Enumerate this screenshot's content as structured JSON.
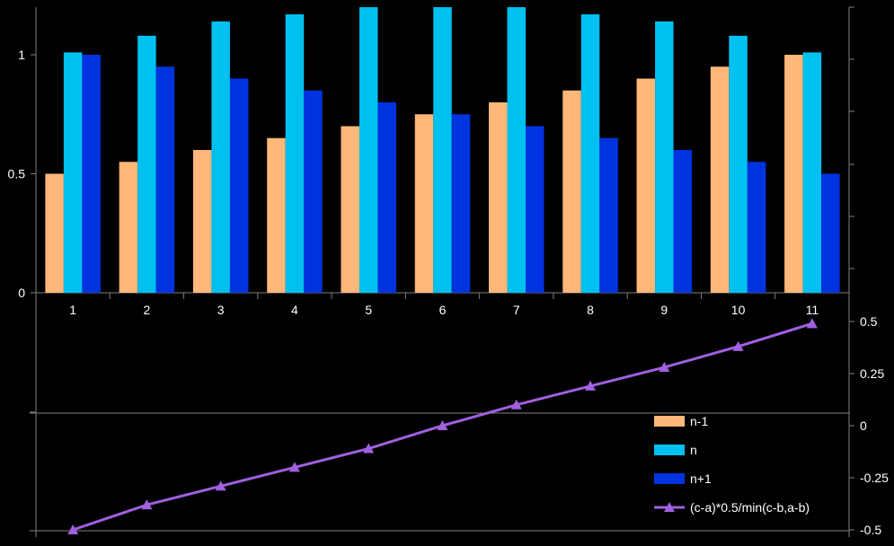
{
  "chart_data": {
    "type": "bar+line",
    "categories": [
      "1",
      "2",
      "3",
      "4",
      "5",
      "6",
      "7",
      "8",
      "9",
      "10",
      "11"
    ],
    "series": [
      {
        "name": "n-1",
        "type": "bar",
        "axis": "left",
        "color": "#FFB77A",
        "values": [
          0.5,
          0.55,
          0.6,
          0.65,
          0.7,
          0.75,
          0.8,
          0.85,
          0.9,
          0.95,
          1.0
        ]
      },
      {
        "name": "n",
        "type": "bar",
        "axis": "left",
        "color": "#00C0F0",
        "values": [
          1.01,
          1.08,
          1.14,
          1.17,
          1.2,
          1.2,
          1.2,
          1.17,
          1.14,
          1.08,
          1.01
        ]
      },
      {
        "name": "n+1",
        "type": "bar",
        "axis": "left",
        "color": "#0033E0",
        "values": [
          1.0,
          0.95,
          0.9,
          0.85,
          0.8,
          0.75,
          0.7,
          0.65,
          0.6,
          0.55,
          0.5
        ]
      },
      {
        "name": "(c-a)*0.5/min(c-b,a-b)",
        "type": "line",
        "axis": "right",
        "marker": "triangle",
        "color": "#A060E0",
        "values": [
          -0.5,
          -0.38,
          -0.29,
          -0.2,
          -0.11,
          0.0,
          0.1,
          0.19,
          0.28,
          0.38,
          0.49
        ]
      }
    ],
    "left_axis": {
      "ticks": [
        0,
        0.5,
        1
      ],
      "tick_labels": [
        "0",
        "0.5",
        "1"
      ],
      "range": [
        0,
        1.2
      ]
    },
    "right_axis": {
      "ticks": [
        -0.5,
        -0.25,
        0,
        0.25,
        0.5
      ],
      "tick_labels": [
        "-0.5",
        "-0.25",
        "0",
        "0.25",
        "0.5"
      ],
      "range": [
        -0.5,
        0.5
      ]
    },
    "grid": false,
    "legend": "bottom-right",
    "background": "#000000",
    "axis_color": "#808080",
    "text_color": "#FFFFFF"
  }
}
